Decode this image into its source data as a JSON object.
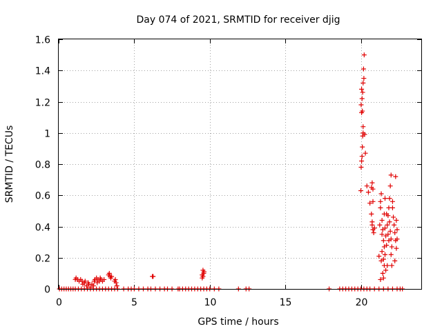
{
  "chart_data": {
    "type": "scatter",
    "title": "Day 074 of 2021, SRMTID for receiver djig",
    "xlabel": "GPS time / hours",
    "ylabel": "SRMTID / TECUs",
    "xlim": [
      0,
      24
    ],
    "ylim": [
      0,
      1.6
    ],
    "xticks": [
      0,
      5,
      10,
      15,
      20
    ],
    "xtick_labels": [
      "0",
      "5",
      "10",
      "15",
      "20"
    ],
    "yticks": [
      0,
      0.2,
      0.4,
      0.6,
      0.8,
      1.0,
      1.2,
      1.4,
      1.6
    ],
    "ytick_labels": [
      "0",
      "0.2",
      "0.4",
      "0.6",
      "0.8",
      "1",
      "1.2",
      "1.4",
      "1.6"
    ],
    "grid": true,
    "marker": "+",
    "color": "#e00000",
    "series": [
      {
        "name": "SRMTID",
        "points": [
          [
            0.05,
            0
          ],
          [
            0.2,
            0
          ],
          [
            0.35,
            0
          ],
          [
            0.5,
            0
          ],
          [
            0.65,
            0
          ],
          [
            0.8,
            0
          ],
          [
            0.95,
            0
          ],
          [
            1.1,
            0
          ],
          [
            1.3,
            0
          ],
          [
            1.5,
            0
          ],
          [
            1.7,
            0
          ],
          [
            1.9,
            0
          ],
          [
            2.1,
            0
          ],
          [
            2.3,
            0
          ],
          [
            2.5,
            0
          ],
          [
            2.7,
            0
          ],
          [
            2.9,
            0
          ],
          [
            3.1,
            0
          ],
          [
            3.3,
            0
          ],
          [
            3.5,
            0
          ],
          [
            3.7,
            0
          ],
          [
            3.9,
            0
          ],
          [
            4.3,
            0
          ],
          [
            4.6,
            0
          ],
          [
            4.8,
            0
          ],
          [
            5.0,
            0
          ],
          [
            5.3,
            0
          ],
          [
            5.6,
            0
          ],
          [
            5.9,
            0
          ],
          [
            6.1,
            0
          ],
          [
            6.4,
            0
          ],
          [
            6.7,
            0
          ],
          [
            7.0,
            0
          ],
          [
            7.2,
            0
          ],
          [
            7.5,
            0
          ],
          [
            7.9,
            0
          ],
          [
            8.0,
            0
          ],
          [
            8.2,
            0
          ],
          [
            8.4,
            0
          ],
          [
            8.6,
            0
          ],
          [
            8.8,
            0
          ],
          [
            9.0,
            0
          ],
          [
            9.2,
            0
          ],
          [
            9.4,
            0
          ],
          [
            9.6,
            0
          ],
          [
            9.8,
            0
          ],
          [
            10.0,
            0
          ],
          [
            10.3,
            0
          ],
          [
            10.6,
            0
          ],
          [
            11.9,
            0
          ],
          [
            12.4,
            0
          ],
          [
            12.6,
            0
          ],
          [
            17.9,
            0
          ],
          [
            18.6,
            0
          ],
          [
            18.8,
            0
          ],
          [
            19.0,
            0
          ],
          [
            19.2,
            0
          ],
          [
            19.4,
            0
          ],
          [
            19.6,
            0
          ],
          [
            19.8,
            0
          ],
          [
            20.0,
            0
          ],
          [
            20.2,
            0
          ],
          [
            20.4,
            0
          ],
          [
            20.6,
            0
          ],
          [
            20.9,
            0
          ],
          [
            21.2,
            0
          ],
          [
            21.5,
            0
          ],
          [
            21.8,
            0
          ],
          [
            22.1,
            0
          ],
          [
            22.4,
            0
          ],
          [
            22.6,
            0
          ],
          [
            22.75,
            0
          ],
          [
            1.1,
            0.06
          ],
          [
            1.15,
            0.07
          ],
          [
            1.25,
            0.06
          ],
          [
            1.35,
            0.05
          ],
          [
            1.45,
            0.06
          ],
          [
            1.55,
            0.05
          ],
          [
            1.6,
            0.03
          ],
          [
            1.7,
            0.04
          ],
          [
            1.75,
            0.05
          ],
          [
            1.85,
            0.02
          ],
          [
            1.95,
            0.04
          ],
          [
            2.0,
            0.03
          ],
          [
            2.1,
            0.01
          ],
          [
            2.2,
            0.03
          ],
          [
            2.3,
            0.02
          ],
          [
            2.35,
            0.05
          ],
          [
            2.4,
            0.06
          ],
          [
            2.5,
            0.07
          ],
          [
            2.55,
            0.04
          ],
          [
            2.6,
            0.06
          ],
          [
            2.7,
            0.05
          ],
          [
            2.75,
            0.07
          ],
          [
            2.8,
            0.06
          ],
          [
            2.9,
            0.05
          ],
          [
            3.0,
            0.06
          ],
          [
            3.3,
            0.09
          ],
          [
            3.35,
            0.1
          ],
          [
            3.4,
            0.08
          ],
          [
            3.45,
            0.07
          ],
          [
            3.5,
            0.08
          ],
          [
            3.7,
            0.05
          ],
          [
            3.75,
            0.06
          ],
          [
            3.8,
            0.04
          ],
          [
            3.85,
            0.02
          ],
          [
            6.2,
            0.08
          ],
          [
            6.25,
            0.08
          ],
          [
            9.5,
            0.09
          ],
          [
            9.55,
            0.12
          ],
          [
            9.6,
            0.1
          ],
          [
            9.55,
            0.08
          ],
          [
            9.62,
            0.11
          ],
          [
            9.5,
            0.07
          ],
          [
            20.0,
            0.63
          ],
          [
            20.02,
            0.78
          ],
          [
            20.05,
            0.82
          ],
          [
            20.08,
            0.85
          ],
          [
            20.1,
            0.91
          ],
          [
            20.12,
            0.98
          ],
          [
            20.15,
            1.04
          ],
          [
            20.05,
            1.13
          ],
          [
            20.1,
            1.14
          ],
          [
            20.02,
            1.18
          ],
          [
            20.08,
            1.22
          ],
          [
            20.12,
            1.26
          ],
          [
            20.05,
            1.28
          ],
          [
            20.15,
            1.32
          ],
          [
            20.2,
            1.35
          ],
          [
            20.18,
            1.41
          ],
          [
            20.22,
            1.5
          ],
          [
            20.15,
            1.0
          ],
          [
            20.25,
            0.99
          ],
          [
            20.3,
            0.87
          ],
          [
            20.4,
            0.66
          ],
          [
            20.5,
            0.62
          ],
          [
            20.6,
            0.55
          ],
          [
            20.7,
            0.65
          ],
          [
            20.75,
            0.68
          ],
          [
            20.8,
            0.64
          ],
          [
            20.7,
            0.48
          ],
          [
            20.75,
            0.41
          ],
          [
            20.8,
            0.38
          ],
          [
            20.85,
            0.36
          ],
          [
            20.75,
            0.43
          ],
          [
            20.9,
            0.39
          ],
          [
            20.8,
            0.56
          ],
          [
            21.2,
            0.21
          ],
          [
            21.25,
            0.41
          ],
          [
            21.3,
            0.56
          ],
          [
            21.35,
            0.61
          ],
          [
            21.3,
            0.52
          ],
          [
            21.4,
            0.44
          ],
          [
            21.45,
            0.38
          ],
          [
            21.5,
            0.31
          ],
          [
            21.55,
            0.27
          ],
          [
            21.4,
            0.24
          ],
          [
            21.35,
            0.18
          ],
          [
            21.45,
            0.1
          ],
          [
            21.5,
            0.07
          ],
          [
            21.3,
            0.06
          ],
          [
            21.55,
            0.48
          ],
          [
            21.6,
            0.39
          ],
          [
            21.65,
            0.34
          ],
          [
            21.7,
            0.28
          ],
          [
            21.6,
            0.22
          ],
          [
            21.75,
            0.41
          ],
          [
            21.8,
            0.47
          ],
          [
            21.85,
            0.52
          ],
          [
            21.9,
            0.58
          ],
          [
            21.95,
            0.66
          ],
          [
            22.0,
            0.73
          ],
          [
            21.9,
            0.43
          ],
          [
            21.95,
            0.37
          ],
          [
            22.0,
            0.32
          ],
          [
            22.05,
            0.27
          ],
          [
            22.0,
            0.22
          ],
          [
            22.1,
            0.52
          ],
          [
            22.15,
            0.46
          ],
          [
            22.2,
            0.41
          ],
          [
            22.25,
            0.36
          ],
          [
            22.3,
            0.72
          ],
          [
            22.35,
            0.44
          ],
          [
            22.4,
            0.38
          ],
          [
            22.3,
            0.31
          ],
          [
            22.35,
            0.26
          ],
          [
            22.25,
            0.18
          ],
          [
            21.7,
            0.48
          ],
          [
            21.8,
            0.35
          ],
          [
            21.85,
            0.31
          ],
          [
            21.75,
            0.15
          ],
          [
            21.65,
            0.12
          ],
          [
            22.1,
            0.56
          ],
          [
            22.05,
            0.15
          ],
          [
            22.4,
            0.32
          ],
          [
            21.6,
            0.58
          ],
          [
            21.5,
            0.19
          ],
          [
            21.4,
            0.35
          ],
          [
            21.55,
            0.15
          ]
        ]
      }
    ]
  }
}
